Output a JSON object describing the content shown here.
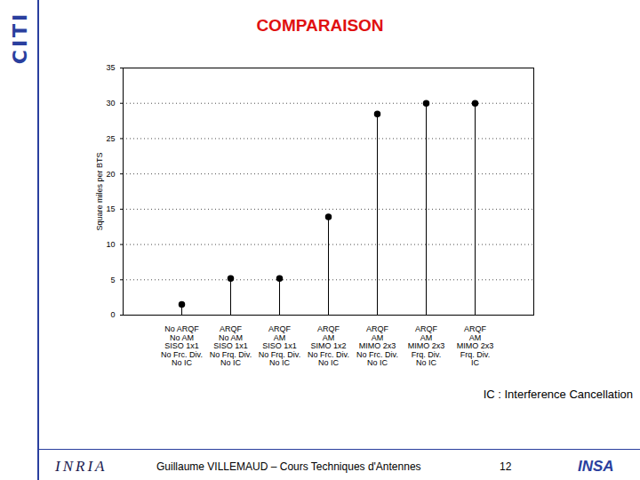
{
  "chart_data": {
    "type": "stem",
    "title": "COMPARAISON",
    "y_label": "Square miles per BTS",
    "categories": [
      "No ARQF\nNo AM\nSISO 1x1\nNo Frc. Div.\nNo IC",
      "ARQF\nNo AM\nSISO 1x1\nNo Frq. Div.\nNo IC",
      "ARQF\nAM\nSISO 1x1\nNo Frq. Div.\nNo IC",
      "ARQF\nAM\nSIMO 1x2\nNo Frc. Div.\nNo IC",
      "ARQF\nAM\nMIMO 2x3\nNo Frc. Div.\nNo IC",
      "ARQF\nAM\nMIMO 2x3\nFrq. Div.\nNo IC",
      "ARQF\nAM\nMIMO 2x3\nFrq. Div.\nIC"
    ],
    "values": [
      1.5,
      5.2,
      5.2,
      13.9,
      28.5,
      30,
      30
    ],
    "color": "#000000",
    "marker": "circle",
    "ylim": [
      0,
      35
    ],
    "yticks": [
      0,
      5,
      10,
      15,
      20,
      25,
      30,
      35
    ],
    "grid": true,
    "annotations": [
      "IC : Interference Cancellation"
    ]
  },
  "slide": {
    "logo_left": "CITI",
    "footer": "Guillaume VILLEMAUD – Cours Techniques d'Antennes",
    "page": "12",
    "logo_bottom_left": "INRIA",
    "logo_bottom_right": "INSA"
  }
}
